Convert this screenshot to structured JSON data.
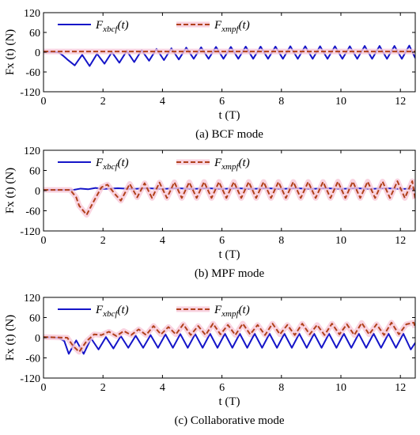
{
  "figure": {
    "panels": [
      {
        "caption": "(a) BCF mode"
      },
      {
        "caption": "(b) MPF mode"
      },
      {
        "caption": "(c) Collaborative mode"
      }
    ]
  },
  "colors": {
    "bcf": "#1515c8",
    "mpf": "#b0401a",
    "mpf_glow": "#f7c8d8",
    "axis": "#000000"
  },
  "chart_data": [
    {
      "type": "line",
      "caption": "(a) BCF mode",
      "xlabel": "t (T)",
      "ylabel": "Fx (t) (N)",
      "xlim": [
        0,
        12.5
      ],
      "ylim": [
        -120,
        120
      ],
      "xticks": [
        0,
        2,
        4,
        6,
        8,
        10,
        12
      ],
      "yticks": [
        120,
        60,
        0,
        -60,
        -120
      ],
      "legend": {
        "placement": "top",
        "entries": [
          {
            "base": "F",
            "sub": "xbcf",
            "tail": "(t)",
            "color": "#1515c8",
            "style": "solid"
          },
          {
            "base": "F",
            "sub": "xmpf",
            "tail": "(t)",
            "color": "#b0401a",
            "style": "dashed"
          }
        ]
      },
      "series": [
        {
          "id": "xbcf",
          "color": "#1515c8",
          "style": "solid",
          "x": [
            0,
            0.5,
            0.65,
            0.8,
            1.05,
            1.3,
            1.55,
            1.8,
            2.05,
            2.3,
            2.55,
            2.8,
            3.05,
            3.3,
            3.55,
            3.8,
            4.05,
            4.3,
            4.55,
            4.8,
            5.05,
            5.3,
            5.55,
            5.8,
            6.05,
            6.3,
            6.55,
            6.8,
            7.05,
            7.3,
            7.55,
            7.8,
            8.05,
            8.3,
            8.55,
            8.8,
            9.05,
            9.3,
            9.55,
            9.8,
            10.05,
            10.3,
            10.55,
            10.8,
            11.05,
            11.3,
            11.55,
            11.8,
            12.05,
            12.3,
            12.5
          ],
          "y": [
            2,
            0,
            -10,
            -22,
            -40,
            -8,
            -42,
            -5,
            -35,
            0,
            -32,
            4,
            -30,
            6,
            -26,
            10,
            -24,
            12,
            -22,
            14,
            -20,
            15,
            -20,
            16,
            -20,
            16,
            -20,
            17,
            -20,
            17,
            -20,
            17,
            -20,
            18,
            -20,
            18,
            -20,
            18,
            -20,
            18,
            -20,
            18,
            -20,
            19,
            -20,
            19,
            -20,
            19,
            -20,
            20,
            -18
          ]
        },
        {
          "id": "xmpf",
          "color": "#b0401a",
          "style": "dashed",
          "x": [
            0,
            1,
            2,
            3,
            4,
            5,
            6,
            7,
            8,
            9,
            10,
            11,
            12,
            12.5
          ],
          "y": [
            2,
            2,
            2,
            2,
            2,
            2,
            2,
            2,
            2,
            2,
            2,
            2,
            2,
            2
          ]
        }
      ]
    },
    {
      "type": "line",
      "caption": "(b) MPF mode",
      "xlabel": "t (T)",
      "ylabel": "Fx (t) (N)",
      "xlim": [
        0,
        12.5
      ],
      "ylim": [
        -120,
        120
      ],
      "xticks": [
        0,
        2,
        4,
        6,
        8,
        10,
        12
      ],
      "yticks": [
        120,
        60,
        0,
        -60,
        -120
      ],
      "legend": {
        "placement": "top",
        "entries": [
          {
            "base": "F",
            "sub": "xbcf",
            "tail": "(t)",
            "color": "#1515c8",
            "style": "solid"
          },
          {
            "base": "F",
            "sub": "xmpf",
            "tail": "(t)",
            "color": "#b0401a",
            "style": "dashed"
          }
        ]
      },
      "series": [
        {
          "id": "xbcf",
          "color": "#1515c8",
          "style": "solid",
          "x": [
            0,
            1,
            1.25,
            1.5,
            1.75,
            2.0,
            2.5,
            3,
            3.5,
            4,
            4.5,
            5,
            5.5,
            6,
            6.5,
            7,
            7.5,
            8,
            8.5,
            9,
            9.5,
            10,
            10.5,
            11,
            11.5,
            12,
            12.5
          ],
          "y": [
            2,
            2,
            6,
            4,
            8,
            5,
            7,
            5,
            7,
            5,
            7,
            5,
            7,
            5,
            7,
            5,
            7,
            5,
            7,
            5,
            7,
            5,
            7,
            5,
            7,
            5,
            6
          ]
        },
        {
          "id": "xmpf",
          "color": "#b0401a",
          "style": "dashed",
          "x": [
            0,
            0.9,
            1.1,
            1.2,
            1.45,
            1.7,
            1.95,
            2.15,
            2.4,
            2.6,
            2.9,
            3.15,
            3.4,
            3.65,
            3.9,
            4.15,
            4.4,
            4.65,
            4.9,
            5.15,
            5.4,
            5.65,
            5.9,
            6.15,
            6.4,
            6.65,
            6.9,
            7.15,
            7.4,
            7.65,
            7.9,
            8.15,
            8.4,
            8.65,
            8.9,
            9.15,
            9.4,
            9.65,
            9.9,
            10.15,
            10.4,
            10.65,
            10.9,
            11.15,
            11.4,
            11.65,
            11.9,
            12.15,
            12.4,
            12.5
          ],
          "y": [
            2,
            2,
            -20,
            -45,
            -72,
            -30,
            10,
            18,
            -10,
            -30,
            20,
            -20,
            22,
            -22,
            24,
            -22,
            25,
            -22,
            25,
            -22,
            26,
            -22,
            26,
            -22,
            26,
            -22,
            26,
            -22,
            26,
            -22,
            26,
            -22,
            26,
            -22,
            26,
            -22,
            26,
            -22,
            27,
            -22,
            27,
            -22,
            27,
            -22,
            27,
            -22,
            28,
            -22,
            28,
            -25
          ]
        }
      ]
    },
    {
      "type": "line",
      "caption": "(c) Collaborative mode",
      "xlabel": "t (T)",
      "ylabel": "Fx (t) (N)",
      "xlim": [
        0,
        12.5
      ],
      "ylim": [
        -120,
        120
      ],
      "xticks": [
        0,
        2,
        4,
        6,
        8,
        10,
        12
      ],
      "yticks": [
        120,
        60,
        0,
        -60,
        -120
      ],
      "legend": {
        "placement": "top",
        "entries": [
          {
            "base": "F",
            "sub": "xbcf",
            "tail": "(t)",
            "color": "#1515c8",
            "style": "solid"
          },
          {
            "base": "F",
            "sub": "xmpf",
            "tail": "(t)",
            "color": "#b0401a",
            "style": "dashed"
          }
        ]
      },
      "series": [
        {
          "id": "xbcf",
          "color": "#1515c8",
          "style": "solid",
          "x": [
            0,
            0.5,
            0.7,
            0.85,
            1.1,
            1.35,
            1.6,
            1.85,
            2.1,
            2.35,
            2.6,
            2.85,
            3.1,
            3.35,
            3.6,
            3.85,
            4.1,
            4.35,
            4.6,
            4.85,
            5.1,
            5.35,
            5.6,
            5.85,
            6.1,
            6.35,
            6.6,
            6.85,
            7.1,
            7.35,
            7.6,
            7.85,
            8.1,
            8.35,
            8.6,
            8.85,
            9.1,
            9.35,
            9.6,
            9.85,
            10.1,
            10.35,
            10.6,
            10.85,
            11.1,
            11.35,
            11.6,
            11.85,
            12.1,
            12.35,
            12.5
          ],
          "y": [
            2,
            0,
            -10,
            -48,
            -8,
            -48,
            -2,
            -35,
            2,
            -32,
            5,
            -30,
            6,
            -30,
            8,
            -30,
            10,
            -30,
            11,
            -30,
            11,
            -30,
            12,
            -30,
            12,
            -30,
            12,
            -30,
            12,
            -30,
            12,
            -30,
            12,
            -30,
            12,
            -30,
            12,
            -30,
            12,
            -30,
            12,
            -30,
            12,
            -30,
            12,
            -30,
            12,
            -30,
            12,
            -35,
            -15
          ]
        },
        {
          "id": "xmpf",
          "color": "#b0401a",
          "style": "dashed",
          "x": [
            0,
            0.8,
            1.0,
            1.2,
            1.45,
            1.7,
            1.95,
            2.2,
            2.45,
            2.7,
            2.95,
            3.2,
            3.45,
            3.7,
            3.95,
            4.2,
            4.45,
            4.7,
            4.95,
            5.2,
            5.45,
            5.7,
            5.95,
            6.2,
            6.45,
            6.7,
            6.95,
            7.2,
            7.45,
            7.7,
            7.95,
            8.2,
            8.45,
            8.7,
            8.95,
            9.2,
            9.45,
            9.7,
            9.95,
            10.2,
            10.45,
            10.7,
            10.95,
            11.2,
            11.45,
            11.7,
            11.95,
            12.2,
            12.45,
            12.5
          ],
          "y": [
            2,
            0,
            -25,
            -42,
            -10,
            10,
            8,
            18,
            5,
            20,
            8,
            25,
            8,
            35,
            10,
            32,
            10,
            40,
            8,
            35,
            8,
            42,
            10,
            38,
            8,
            42,
            10,
            38,
            8,
            42,
            10,
            38,
            8,
            42,
            10,
            38,
            8,
            42,
            10,
            40,
            8,
            44,
            10,
            40,
            8,
            45,
            10,
            40,
            45,
            30
          ]
        }
      ]
    }
  ]
}
